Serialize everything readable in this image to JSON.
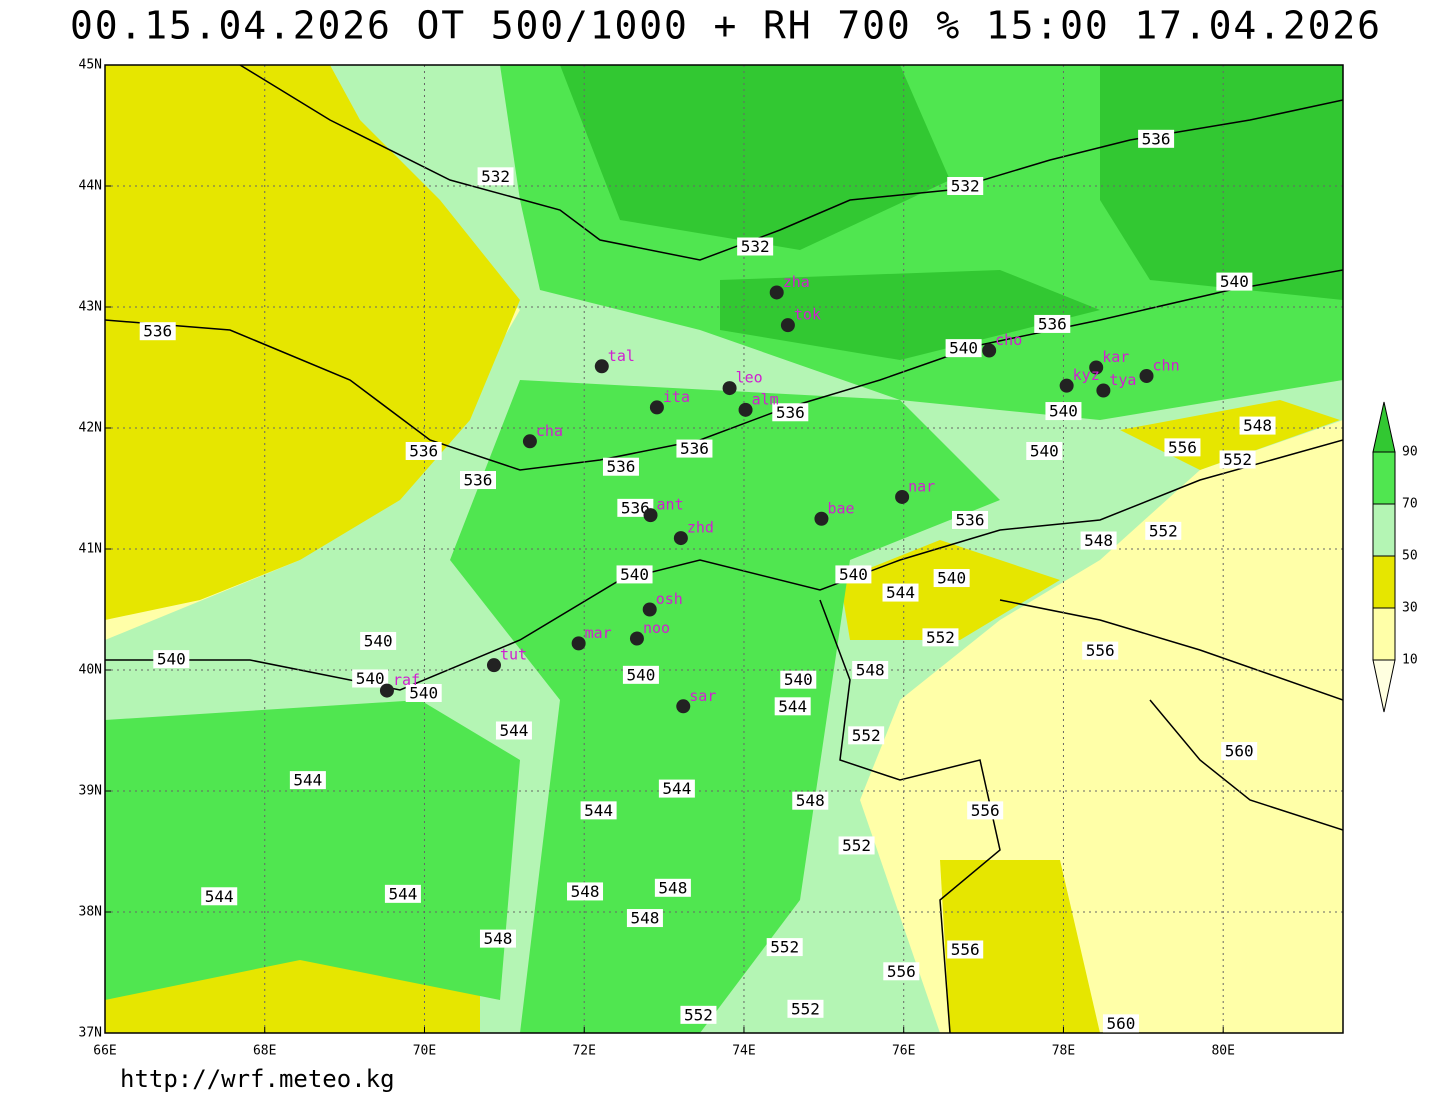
{
  "title": "00.15.04.2026 OT 500/1000 + RH 700 % 15:00 17.04.2026",
  "footer": "http://wrf.meteo.kg",
  "map": {
    "lon_range": [
      66,
      81.5
    ],
    "lat_range": [
      37,
      45
    ],
    "lon_ticks": [
      {
        "value": 66,
        "label": "66E"
      },
      {
        "value": 68,
        "label": "68E"
      },
      {
        "value": 70,
        "label": "70E"
      },
      {
        "value": 72,
        "label": "72E"
      },
      {
        "value": 74,
        "label": "74E"
      },
      {
        "value": 76,
        "label": "76E"
      },
      {
        "value": 78,
        "label": "78E"
      },
      {
        "value": 80,
        "label": "80E"
      }
    ],
    "lat_ticks": [
      {
        "value": 37,
        "label": "37N"
      },
      {
        "value": 38,
        "label": "38N"
      },
      {
        "value": 39,
        "label": "39N"
      },
      {
        "value": 40,
        "label": "40N"
      },
      {
        "value": 41,
        "label": "41N"
      },
      {
        "value": 42,
        "label": "42N"
      },
      {
        "value": 43,
        "label": "43N"
      },
      {
        "value": 44,
        "label": "44N"
      },
      {
        "value": 45,
        "label": "45N"
      }
    ],
    "stations": [
      {
        "name": "zha",
        "lon": 74.41,
        "lat": 43.12
      },
      {
        "name": "tok",
        "lon": 74.55,
        "lat": 42.85
      },
      {
        "name": "tal",
        "lon": 72.22,
        "lat": 42.51
      },
      {
        "name": "cho",
        "lon": 77.07,
        "lat": 42.64
      },
      {
        "name": "kar",
        "lon": 78.41,
        "lat": 42.5
      },
      {
        "name": "kyz",
        "lon": 78.04,
        "lat": 42.35
      },
      {
        "name": "tya",
        "lon": 78.5,
        "lat": 42.31
      },
      {
        "name": "chn",
        "lon": 79.04,
        "lat": 42.43
      },
      {
        "name": "leo",
        "lon": 73.82,
        "lat": 42.33
      },
      {
        "name": "ita",
        "lon": 72.91,
        "lat": 42.17
      },
      {
        "name": "alm",
        "lon": 74.02,
        "lat": 42.15
      },
      {
        "name": "cha",
        "lon": 71.32,
        "lat": 41.89
      },
      {
        "name": "nar",
        "lon": 75.98,
        "lat": 41.43
      },
      {
        "name": "bae",
        "lon": 74.97,
        "lat": 41.25
      },
      {
        "name": "ant",
        "lon": 72.83,
        "lat": 41.28
      },
      {
        "name": "zhd",
        "lon": 73.21,
        "lat": 41.09
      },
      {
        "name": "osh",
        "lon": 72.82,
        "lat": 40.5
      },
      {
        "name": "mar",
        "lon": 71.93,
        "lat": 40.22
      },
      {
        "name": "noo",
        "lon": 72.66,
        "lat": 40.26
      },
      {
        "name": "tut",
        "lon": 70.87,
        "lat": 40.04
      },
      {
        "name": "raf",
        "lon": 69.53,
        "lat": 39.83
      },
      {
        "name": "sar",
        "lon": 73.24,
        "lat": 39.7
      }
    ],
    "contour_labels": [
      {
        "value": 532,
        "lon": 70.89,
        "lat": 44.08
      },
      {
        "value": 532,
        "lon": 76.77,
        "lat": 44.0
      },
      {
        "value": 532,
        "lon": 74.14,
        "lat": 43.5
      },
      {
        "value": 536,
        "lon": 79.16,
        "lat": 44.39
      },
      {
        "value": 536,
        "lon": 66.66,
        "lat": 42.8
      },
      {
        "value": 540,
        "lon": 80.14,
        "lat": 43.21
      },
      {
        "value": 536,
        "lon": 77.86,
        "lat": 42.86
      },
      {
        "value": 540,
        "lon": 76.75,
        "lat": 42.66
      },
      {
        "value": 540,
        "lon": 78.0,
        "lat": 42.14
      },
      {
        "value": 536,
        "lon": 74.58,
        "lat": 42.13
      },
      {
        "value": 536,
        "lon": 69.99,
        "lat": 41.81
      },
      {
        "value": 536,
        "lon": 73.38,
        "lat": 41.83
      },
      {
        "value": 536,
        "lon": 72.46,
        "lat": 41.68
      },
      {
        "value": 540,
        "lon": 77.76,
        "lat": 41.81
      },
      {
        "value": 536,
        "lon": 70.67,
        "lat": 41.57
      },
      {
        "value": 556,
        "lon": 79.49,
        "lat": 41.84
      },
      {
        "value": 552,
        "lon": 80.18,
        "lat": 41.74
      },
      {
        "value": 548,
        "lon": 80.43,
        "lat": 42.02
      },
      {
        "value": 536,
        "lon": 72.64,
        "lat": 41.34
      },
      {
        "value": 536,
        "lon": 76.83,
        "lat": 41.24
      },
      {
        "value": 552,
        "lon": 79.25,
        "lat": 41.15
      },
      {
        "value": 548,
        "lon": 78.44,
        "lat": 41.07
      },
      {
        "value": 540,
        "lon": 72.63,
        "lat": 40.79
      },
      {
        "value": 540,
        "lon": 75.37,
        "lat": 40.79
      },
      {
        "value": 540,
        "lon": 76.6,
        "lat": 40.76
      },
      {
        "value": 544,
        "lon": 75.96,
        "lat": 40.64
      },
      {
        "value": 552,
        "lon": 76.46,
        "lat": 40.27
      },
      {
        "value": 540,
        "lon": 69.42,
        "lat": 40.24
      },
      {
        "value": 540,
        "lon": 66.83,
        "lat": 40.09
      },
      {
        "value": 556,
        "lon": 78.46,
        "lat": 40.16
      },
      {
        "value": 548,
        "lon": 75.58,
        "lat": 40.0
      },
      {
        "value": 540,
        "lon": 72.71,
        "lat": 39.96
      },
      {
        "value": 540,
        "lon": 69.32,
        "lat": 39.93
      },
      {
        "value": 540,
        "lon": 69.99,
        "lat": 39.81
      },
      {
        "value": 540,
        "lon": 74.68,
        "lat": 39.92
      },
      {
        "value": 544,
        "lon": 74.61,
        "lat": 39.7
      },
      {
        "value": 552,
        "lon": 75.53,
        "lat": 39.46
      },
      {
        "value": 544,
        "lon": 71.12,
        "lat": 39.5
      },
      {
        "value": 560,
        "lon": 80.2,
        "lat": 39.33
      },
      {
        "value": 544,
        "lon": 68.54,
        "lat": 39.09
      },
      {
        "value": 544,
        "lon": 73.16,
        "lat": 39.02
      },
      {
        "value": 548,
        "lon": 74.83,
        "lat": 38.92
      },
      {
        "value": 544,
        "lon": 72.18,
        "lat": 38.84
      },
      {
        "value": 556,
        "lon": 77.02,
        "lat": 38.84
      },
      {
        "value": 552,
        "lon": 75.41,
        "lat": 38.55
      },
      {
        "value": 544,
        "lon": 67.43,
        "lat": 38.13
      },
      {
        "value": 544,
        "lon": 69.73,
        "lat": 38.15
      },
      {
        "value": 548,
        "lon": 72.01,
        "lat": 38.17
      },
      {
        "value": 548,
        "lon": 73.11,
        "lat": 38.2
      },
      {
        "value": 548,
        "lon": 72.76,
        "lat": 37.95
      },
      {
        "value": 548,
        "lon": 70.92,
        "lat": 37.78
      },
      {
        "value": 552,
        "lon": 74.51,
        "lat": 37.71
      },
      {
        "value": 556,
        "lon": 76.77,
        "lat": 37.69
      },
      {
        "value": 556,
        "lon": 75.97,
        "lat": 37.51
      },
      {
        "value": 552,
        "lon": 74.77,
        "lat": 37.2
      },
      {
        "value": 552,
        "lon": 73.43,
        "lat": 37.15
      },
      {
        "value": 560,
        "lon": 78.72,
        "lat": 37.08
      }
    ]
  },
  "legend": {
    "levels": [
      10,
      30,
      50,
      70,
      90
    ],
    "colors": [
      "#ffffe0",
      "#ffffa8",
      "#e6e600",
      "#b4f5b4",
      "#50e650",
      "#32c832"
    ]
  }
}
